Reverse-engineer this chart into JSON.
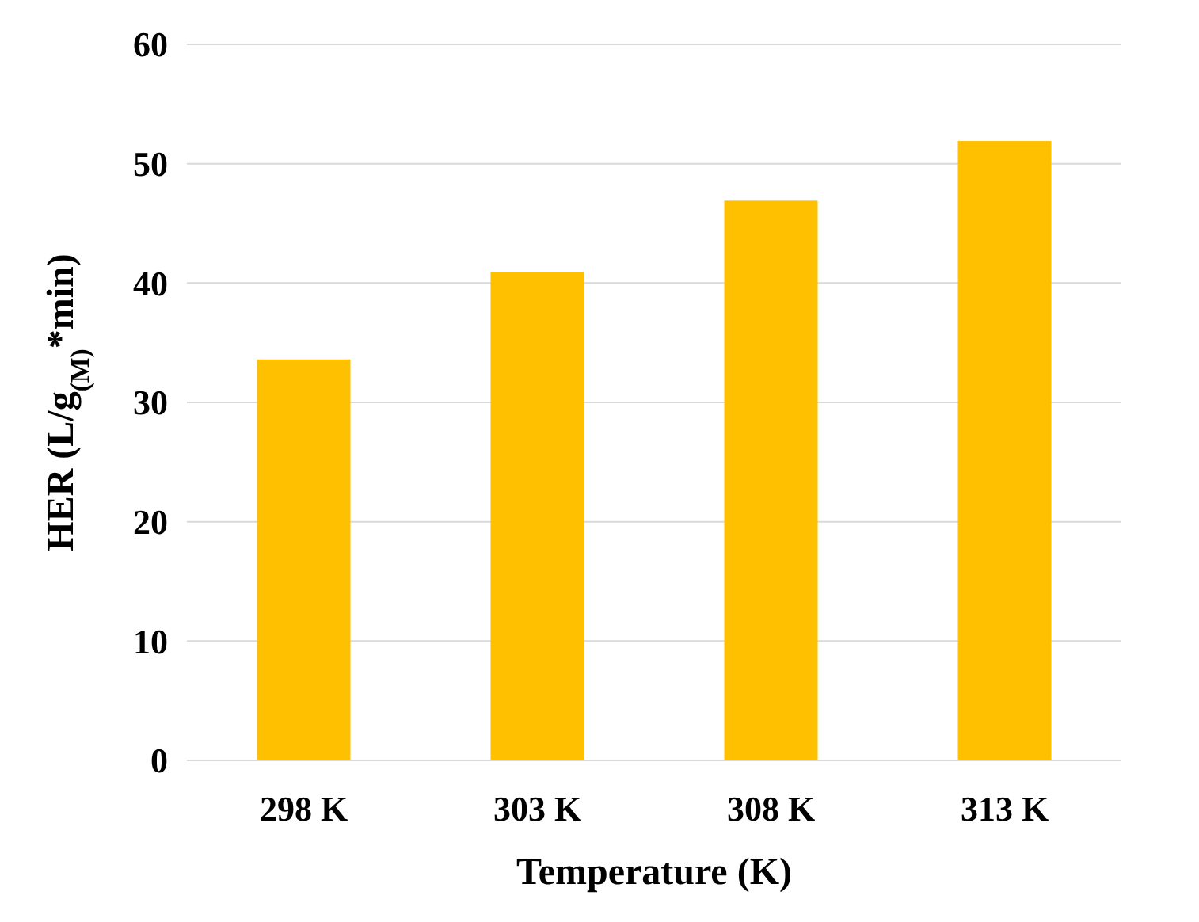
{
  "chart_data": {
    "type": "bar",
    "xlabel": "Temperature (K)",
    "ylabel": "HER  (L/g$_{(M)}$*min)",
    "categories": [
      "298 K",
      "303 K",
      "308 K",
      "313 K"
    ],
    "values": [
      33.6,
      40.9,
      46.9,
      51.9
    ],
    "color": "#ffc000",
    "ylim": [
      0,
      60
    ],
    "yticks": [
      0,
      10,
      20,
      30,
      40,
      50,
      60
    ],
    "grid": "y"
  }
}
